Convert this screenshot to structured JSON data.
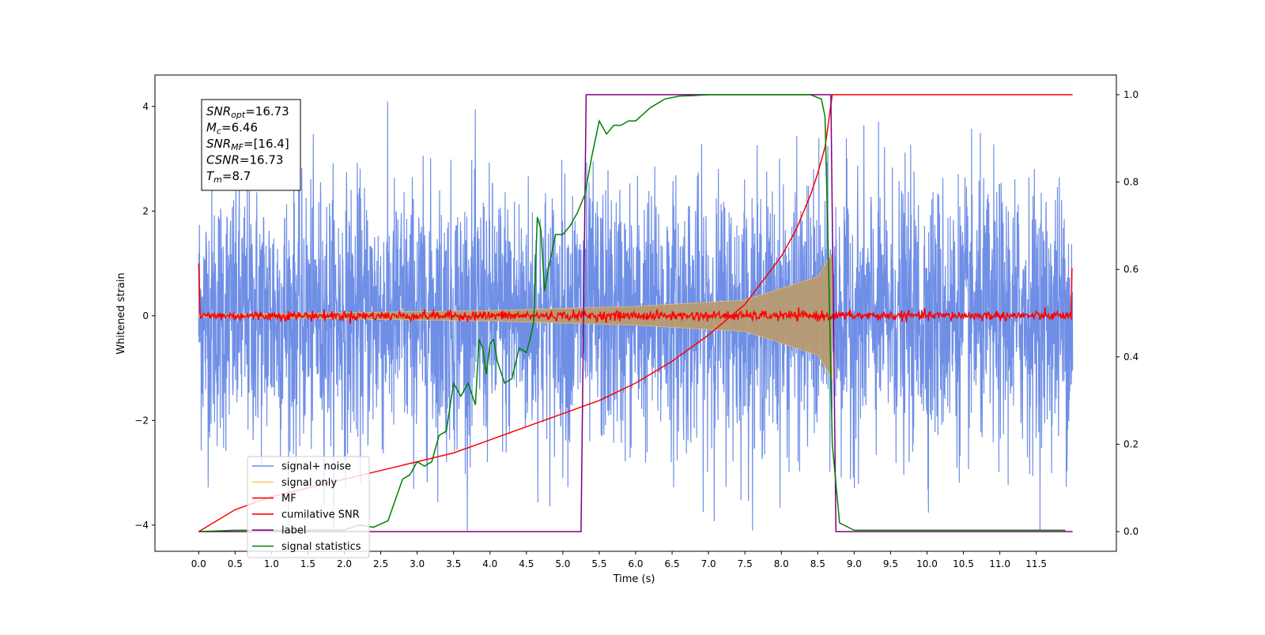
{
  "chart_data": {
    "type": "line",
    "title": "",
    "xlabel": "Time (s)",
    "ylabel": "Whitened strain",
    "y2label": "",
    "xlim": [
      -0.6,
      12.6
    ],
    "ylim": [
      -4.5,
      4.6
    ],
    "y2lim": [
      -0.045,
      1.045
    ],
    "x_ticks": [
      0.0,
      0.5,
      1.0,
      1.5,
      2.0,
      2.5,
      3.0,
      3.5,
      4.0,
      4.5,
      5.0,
      5.5,
      6.0,
      6.5,
      7.0,
      7.5,
      8.0,
      8.5,
      9.0,
      9.5,
      10.0,
      10.5,
      11.0,
      11.5
    ],
    "x_tick_labels": [
      "0.0",
      "0.5",
      "1.0",
      "1.5",
      "2.0",
      "2.5",
      "3.0",
      "3.5",
      "4.0",
      "4.5",
      "5.0",
      "5.5",
      "6.0",
      "6.5",
      "7.0",
      "7.5",
      "8.0",
      "8.5",
      "9.0",
      "9.5",
      "10.0",
      "10.5",
      "11.0",
      "11.5"
    ],
    "y_ticks": [
      -4,
      -2,
      0,
      2,
      4
    ],
    "y_tick_labels": [
      "−4",
      "−2",
      "0",
      "2",
      "4"
    ],
    "y2_ticks": [
      0.0,
      0.2,
      0.4,
      0.6,
      0.8,
      1.0
    ],
    "y2_tick_labels": [
      "0.0",
      "0.2",
      "0.4",
      "0.6",
      "0.8",
      "1.0"
    ],
    "grid": false,
    "legend_position": "lower-left",
    "series": [
      {
        "name": "signal+ noise",
        "axis": "left",
        "color": "#6f8fe6",
        "note": "whitened noise, amplitude approx ±2.5 with peaks to ±4",
        "x_range": [
          0.0,
          12.0
        ]
      },
      {
        "name": "signal only",
        "axis": "left",
        "color": "#ffc966",
        "chirp_amplitude": [
          [
            0.0,
            0.02
          ],
          [
            2.0,
            0.06
          ],
          [
            4.0,
            0.1
          ],
          [
            6.0,
            0.18
          ],
          [
            7.5,
            0.3
          ],
          [
            8.5,
            0.75
          ],
          [
            8.7,
            1.2
          ]
        ],
        "x_range": [
          0.0,
          8.7
        ]
      },
      {
        "name": "MF",
        "axis": "left",
        "color": "#ff0000",
        "note": "approx 0 with small fluctuations, spikes to ~1.0 at both ends",
        "x_range": [
          0.0,
          12.0
        ]
      },
      {
        "name": "cumilative SNR",
        "axis": "right",
        "color": "#ff0000",
        "x": [
          0.0,
          0.5,
          1.0,
          1.5,
          2.0,
          2.5,
          3.0,
          3.5,
          4.0,
          4.5,
          5.0,
          5.5,
          6.0,
          6.5,
          7.0,
          7.5,
          8.0,
          8.2,
          8.4,
          8.5,
          8.6,
          8.7,
          12.0
        ],
        "y": [
          0.0,
          0.05,
          0.08,
          0.1,
          0.12,
          0.14,
          0.16,
          0.18,
          0.21,
          0.24,
          0.27,
          0.3,
          0.34,
          0.39,
          0.45,
          0.52,
          0.63,
          0.69,
          0.77,
          0.82,
          0.88,
          1.0,
          1.0
        ]
      },
      {
        "name": "label",
        "axis": "right",
        "color": "#800080",
        "x": [
          0.0,
          5.25,
          5.32,
          8.68,
          8.75,
          12.0
        ],
        "y": [
          0.0,
          0.0,
          1.0,
          1.0,
          0.0,
          0.0
        ]
      },
      {
        "name": "signal statistics",
        "axis": "right",
        "color": "#008000",
        "x": [
          0.0,
          0.5,
          1.0,
          1.5,
          2.0,
          2.2,
          2.4,
          2.6,
          2.8,
          2.9,
          3.0,
          3.1,
          3.2,
          3.3,
          3.4,
          3.5,
          3.6,
          3.7,
          3.8,
          3.85,
          3.9,
          3.95,
          4.0,
          4.05,
          4.1,
          4.2,
          4.3,
          4.4,
          4.5,
          4.55,
          4.6,
          4.65,
          4.7,
          4.75,
          4.8,
          4.85,
          4.9,
          5.0,
          5.1,
          5.2,
          5.3,
          5.4,
          5.5,
          5.6,
          5.7,
          5.8,
          5.9,
          6.0,
          6.2,
          6.4,
          6.6,
          6.8,
          7.0,
          7.2,
          7.5,
          8.0,
          8.4,
          8.55,
          8.6,
          8.65,
          8.7,
          8.8,
          9.0,
          11.9
        ],
        "y": [
          0.0,
          0.003,
          0.003,
          0.003,
          0.004,
          0.015,
          0.01,
          0.025,
          0.12,
          0.13,
          0.16,
          0.15,
          0.16,
          0.22,
          0.23,
          0.34,
          0.31,
          0.34,
          0.29,
          0.44,
          0.42,
          0.36,
          0.43,
          0.44,
          0.39,
          0.34,
          0.35,
          0.42,
          0.41,
          0.44,
          0.48,
          0.72,
          0.69,
          0.55,
          0.6,
          0.64,
          0.68,
          0.68,
          0.7,
          0.73,
          0.77,
          0.86,
          0.94,
          0.91,
          0.93,
          0.93,
          0.94,
          0.94,
          0.97,
          0.99,
          0.997,
          0.998,
          1.0,
          1.0,
          1.0,
          1.0,
          1.0,
          0.99,
          0.95,
          0.6,
          0.2,
          0.02,
          0.003,
          0.003
        ]
      }
    ]
  },
  "info_box": {
    "lines": [
      {
        "sym": "SNR",
        "sub": "opt",
        "value": "=16.73"
      },
      {
        "sym": "M",
        "sub": "c",
        "value": "=6.46"
      },
      {
        "sym": "SNR",
        "sub": "MF",
        "value": "=[16.4]"
      },
      {
        "sym": "CSNR",
        "sub": "",
        "value": "=16.73"
      },
      {
        "sym": "T",
        "sub": "m",
        "value": "=8.7"
      }
    ]
  },
  "legend": {
    "items": [
      {
        "label": "signal+ noise",
        "color": "#6f8fe6"
      },
      {
        "label": "signal only",
        "color": "#ffc966"
      },
      {
        "label": "MF",
        "color": "#ff0000"
      },
      {
        "label": "cumilative SNR",
        "color": "#ff0000"
      },
      {
        "label": "label",
        "color": "#800080"
      },
      {
        "label": "signal statistics",
        "color": "#008000"
      }
    ]
  }
}
